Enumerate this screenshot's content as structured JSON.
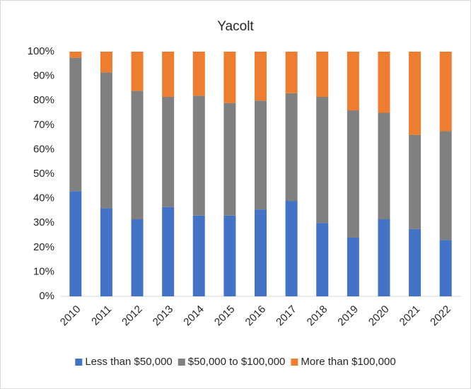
{
  "chart_data": {
    "type": "stacked_bar",
    "title": "Yacolt",
    "categories": [
      "2010",
      "2011",
      "2012",
      "2013",
      "2014",
      "2015",
      "2016",
      "2017",
      "2018",
      "2019",
      "2020",
      "2021",
      "2022"
    ],
    "series": [
      {
        "name": "Less than $50,000",
        "color": "#4472c4",
        "values": [
          43,
          36,
          31.5,
          36.5,
          33,
          33,
          35.5,
          39,
          30,
          24,
          31.5,
          27.5,
          23
        ]
      },
      {
        "name": "$50,000 to $100,000",
        "color": "#808080",
        "values": [
          54.5,
          55.5,
          52.5,
          45,
          49,
          46,
          44.5,
          44,
          51.5,
          52,
          43.5,
          38.5,
          44.5
        ]
      },
      {
        "name": "More than $100,000",
        "color": "#ed7d31",
        "values": [
          2.5,
          8.5,
          16,
          18.5,
          18,
          21,
          20,
          17,
          18.5,
          24,
          25,
          34,
          32.5
        ]
      }
    ],
    "ylim": [
      0,
      100
    ],
    "yticks": [
      {
        "value": 0,
        "label": "0%"
      },
      {
        "value": 10,
        "label": "10%"
      },
      {
        "value": 20,
        "label": "20%"
      },
      {
        "value": 30,
        "label": "30%"
      },
      {
        "value": 40,
        "label": "40%"
      },
      {
        "value": 50,
        "label": "50%"
      },
      {
        "value": 60,
        "label": "60%"
      },
      {
        "value": 70,
        "label": "70%"
      },
      {
        "value": 80,
        "label": "80%"
      },
      {
        "value": 90,
        "label": "90%"
      },
      {
        "value": 100,
        "label": "100%"
      }
    ],
    "grid": false,
    "legend": "bottom"
  }
}
